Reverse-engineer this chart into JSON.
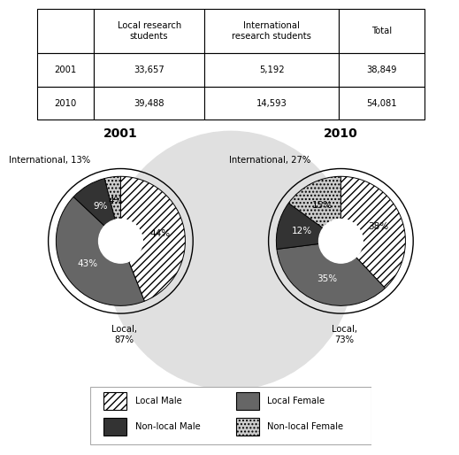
{
  "table": {
    "headers": [
      "",
      "Local research\nstudents",
      "International\nresearch students",
      "Total"
    ],
    "rows": [
      [
        "2001",
        "33,657",
        "5,192",
        "38,849"
      ],
      [
        "2010",
        "39,488",
        "14,593",
        "54,081"
      ]
    ]
  },
  "pie_2001": {
    "title": "2001",
    "slices": [
      44,
      43,
      9,
      4
    ],
    "labels_inside": [
      "44%",
      "43%",
      "9%",
      "4%"
    ],
    "label_local": "Local,\n87%",
    "label_intl": "International, 13%",
    "startangle": 90
  },
  "pie_2010": {
    "title": "2010",
    "slices": [
      38,
      35,
      12,
      15
    ],
    "labels_inside": [
      "38%",
      "35%",
      "12%",
      "15%"
    ],
    "label_local": "Local,\n73%",
    "label_intl": "International, 27%",
    "startangle": 90
  },
  "slice_colors": [
    "#ffffff",
    "#666666",
    "#333333",
    "#cccccc"
  ],
  "slice_hatches": [
    "////",
    "",
    "",
    "...."
  ],
  "legend_items": [
    {
      "hatch": "////",
      "color": "#ffffff",
      "label": "Local Male"
    },
    {
      "hatch": "",
      "color": "#666666",
      "label": "Local Female"
    },
    {
      "hatch": "",
      "color": "#333333",
      "label": "Non-local Male"
    },
    {
      "hatch": "....",
      "color": "#cccccc",
      "label": "Non-local Female"
    }
  ],
  "bg_color": "#ffffff",
  "watermark_color": "#e0e0e0"
}
